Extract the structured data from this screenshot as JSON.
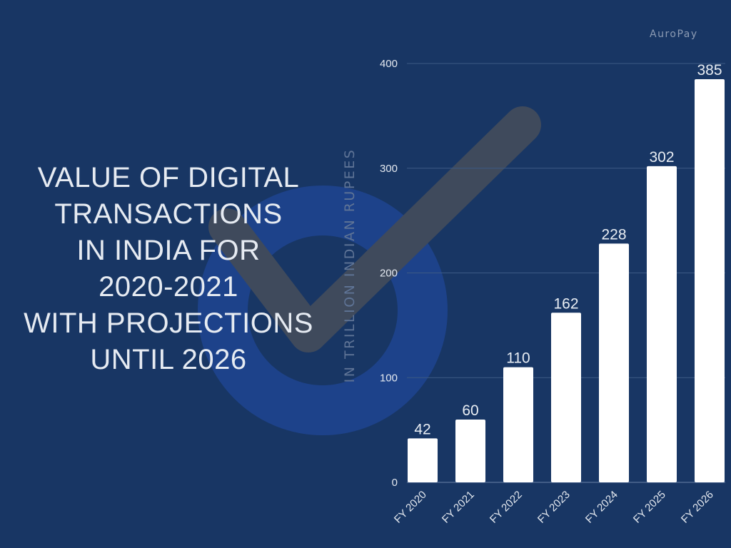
{
  "brand": "AuroPay",
  "title_lines": [
    "VALUE OF DIGITAL",
    "TRANSACTIONS",
    "IN INDIA FOR",
    "2020-2021",
    "WITH PROJECTIONS",
    "UNTIL 2026"
  ],
  "colors": {
    "background": "#183664",
    "bar": "#ffffff",
    "grid": "#3d5a85",
    "watermark_circle": "#1d428a",
    "watermark_check": "#3f4a5c"
  },
  "chart_data": {
    "type": "bar",
    "title": "VALUE OF DIGITAL TRANSACTIONS IN INDIA FOR 2020-2021 WITH PROJECTIONS UNTIL 2026",
    "categories": [
      "FY 2020",
      "FY 2021",
      "FY 2022",
      "FY 2023",
      "FY 2024",
      "FY 2025",
      "FY 2026"
    ],
    "values": [
      42,
      60,
      110,
      162,
      228,
      302,
      385
    ],
    "ylabel": "IN TRILLION INDIAN RUPEES",
    "xlabel": "",
    "ylim": [
      0,
      400
    ],
    "yticks": [
      0,
      100,
      200,
      300,
      400
    ],
    "grid": true,
    "data_labels": true
  }
}
